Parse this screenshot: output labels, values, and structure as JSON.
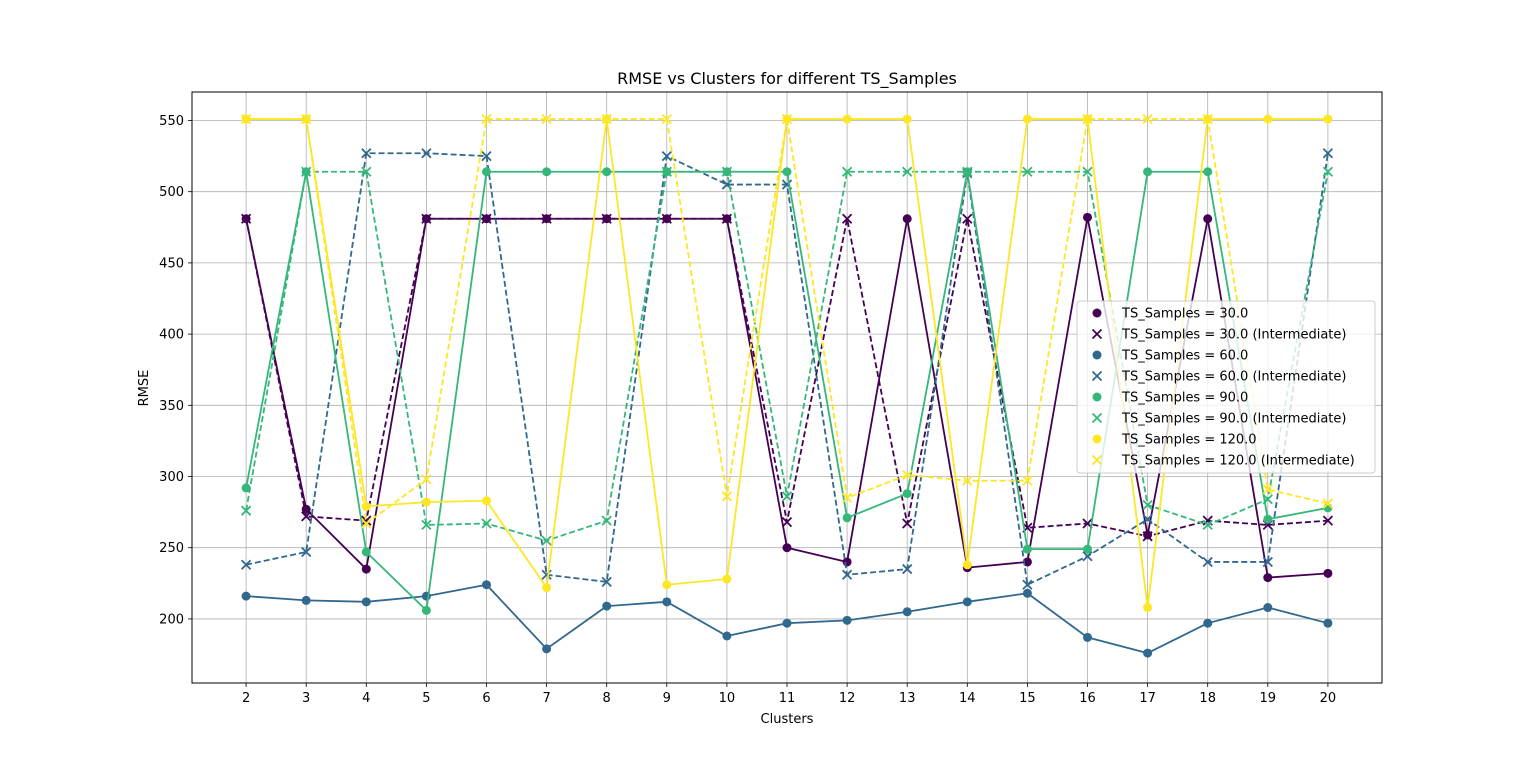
{
  "chart_data": {
    "type": "line",
    "title": "RMSE vs Clusters for different TS_Samples",
    "xlabel": "Clusters",
    "ylabel": "RMSE",
    "x": [
      2,
      3,
      4,
      5,
      6,
      7,
      8,
      9,
      10,
      11,
      12,
      13,
      14,
      15,
      16,
      17,
      18,
      19,
      20
    ],
    "xlim": [
      1.1,
      20.9
    ],
    "ylim": [
      155,
      570
    ],
    "yticks": [
      200,
      250,
      300,
      350,
      400,
      450,
      500,
      550
    ],
    "grid": true,
    "legend_position": "center-right",
    "series": [
      {
        "name": "TS_Samples = 30.0",
        "color": "#440154",
        "style": "solid",
        "marker": "circle",
        "values": [
          481,
          277,
          235,
          481,
          481,
          481,
          481,
          481,
          481,
          250,
          240,
          481,
          236,
          240,
          482,
          259,
          481,
          229,
          232
        ]
      },
      {
        "name": "TS_Samples = 30.0 (Intermediate)",
        "color": "#440154",
        "style": "dashed",
        "marker": "x",
        "values": [
          481,
          272,
          269,
          481,
          481,
          481,
          481,
          481,
          481,
          268,
          481,
          267,
          481,
          264,
          267,
          258,
          269,
          266,
          269
        ]
      },
      {
        "name": "TS_Samples = 60.0",
        "color": "#31688e",
        "style": "solid",
        "marker": "circle",
        "values": [
          216,
          213,
          212,
          216,
          224,
          179,
          209,
          212,
          188,
          197,
          199,
          205,
          212,
          218,
          187,
          176,
          197,
          208,
          197
        ]
      },
      {
        "name": "TS_Samples = 60.0 (Intermediate)",
        "color": "#31688e",
        "style": "dashed",
        "marker": "x",
        "values": [
          238,
          247,
          527,
          527,
          525,
          231,
          226,
          525,
          505,
          505,
          231,
          235,
          513,
          224,
          244,
          270,
          240,
          240,
          527
        ]
      },
      {
        "name": "TS_Samples = 90.0",
        "color": "#35b779",
        "style": "solid",
        "marker": "circle",
        "values": [
          292,
          514,
          247,
          206,
          514,
          514,
          514,
          514,
          514,
          514,
          271,
          288,
          514,
          249,
          249,
          514,
          514,
          270,
          278
        ]
      },
      {
        "name": "TS_Samples = 90.0 (Intermediate)",
        "color": "#35b779",
        "style": "dashed",
        "marker": "x",
        "values": [
          276,
          514,
          514,
          266,
          267,
          255,
          269,
          514,
          514,
          286,
          514,
          514,
          514,
          514,
          514,
          280,
          266,
          284,
          514
        ]
      },
      {
        "name": "TS_Samples = 120.0",
        "color": "#fde725",
        "style": "solid",
        "marker": "circle",
        "values": [
          551,
          551,
          279,
          282,
          283,
          222,
          551,
          224,
          228,
          551,
          551,
          551,
          238,
          551,
          551,
          208,
          551,
          551,
          551
        ]
      },
      {
        "name": "TS_Samples = 120.0 (Intermediate)",
        "color": "#fde725",
        "style": "dashed",
        "marker": "x",
        "values": [
          551,
          551,
          267,
          298,
          551,
          551,
          551,
          551,
          286,
          551,
          285,
          301,
          297,
          297,
          551,
          551,
          551,
          291,
          281
        ]
      }
    ]
  }
}
